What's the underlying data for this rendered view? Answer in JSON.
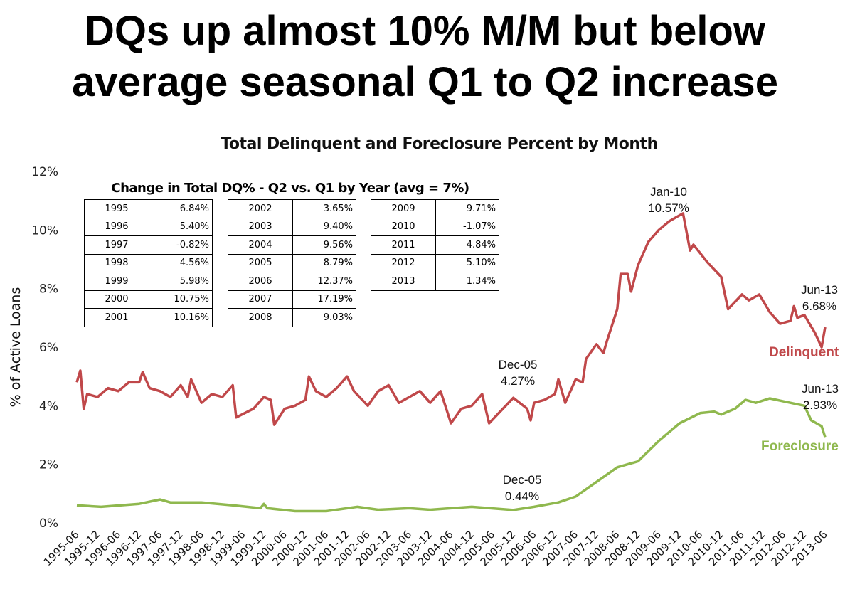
{
  "headline": {
    "line1": "DQs up almost 10% M/M but below",
    "line2": "average seasonal Q1 to Q2 increase"
  },
  "chart_data": {
    "type": "line",
    "title": "Total Delinquent and Foreclosure Percent by Month",
    "ylabel": "% of Active Loans",
    "xlabel": "",
    "ylim": [
      0,
      12
    ],
    "yticks": [
      "0%",
      "2%",
      "4%",
      "6%",
      "8%",
      "10%",
      "12%"
    ],
    "xticks": [
      "1995-06",
      "1995-12",
      "1996-06",
      "1996-12",
      "1997-06",
      "1997-12",
      "1998-06",
      "1998-12",
      "1999-06",
      "1999-12",
      "2000-06",
      "2000-12",
      "2001-06",
      "2001-12",
      "2002-06",
      "2002-12",
      "2003-06",
      "2003-12",
      "2004-06",
      "2004-12",
      "2005-06",
      "2005-12",
      "2006-06",
      "2006-12",
      "2007-06",
      "2007-12",
      "2008-06",
      "2008-12",
      "2009-06",
      "2009-12",
      "2010-06",
      "2010-12",
      "2011-06",
      "2011-12",
      "2012-06",
      "2012-12",
      "2013-06"
    ],
    "grid": false,
    "legend": "inline labels at right",
    "series": [
      {
        "name": "Delinquent",
        "color": "#c0484a",
        "points": [
          [
            "1995-06",
            4.8
          ],
          [
            "1995-07",
            5.2
          ],
          [
            "1995-08",
            3.9
          ],
          [
            "1995-09",
            4.4
          ],
          [
            "1995-12",
            4.3
          ],
          [
            "1996-03",
            4.6
          ],
          [
            "1996-06",
            4.5
          ],
          [
            "1996-09",
            4.8
          ],
          [
            "1996-12",
            4.8
          ],
          [
            "1997-01",
            5.15
          ],
          [
            "1997-03",
            4.6
          ],
          [
            "1997-06",
            4.5
          ],
          [
            "1997-09",
            4.3
          ],
          [
            "1997-12",
            4.7
          ],
          [
            "1998-02",
            4.3
          ],
          [
            "1998-03",
            4.9
          ],
          [
            "1998-06",
            4.1
          ],
          [
            "1998-09",
            4.4
          ],
          [
            "1998-12",
            4.3
          ],
          [
            "1999-03",
            4.7
          ],
          [
            "1999-04",
            3.6
          ],
          [
            "1999-09",
            3.9
          ],
          [
            "1999-12",
            4.3
          ],
          [
            "2000-02",
            4.2
          ],
          [
            "2000-03",
            3.35
          ],
          [
            "2000-06",
            3.9
          ],
          [
            "2000-09",
            4.0
          ],
          [
            "2000-12",
            4.2
          ],
          [
            "2001-01",
            5.0
          ],
          [
            "2001-03",
            4.5
          ],
          [
            "2001-06",
            4.3
          ],
          [
            "2001-09",
            4.6
          ],
          [
            "2001-12",
            5.0
          ],
          [
            "2002-02",
            4.5
          ],
          [
            "2002-06",
            4.0
          ],
          [
            "2002-09",
            4.5
          ],
          [
            "2002-12",
            4.7
          ],
          [
            "2003-03",
            4.1
          ],
          [
            "2003-06",
            4.3
          ],
          [
            "2003-09",
            4.5
          ],
          [
            "2003-12",
            4.1
          ],
          [
            "2004-03",
            4.5
          ],
          [
            "2004-06",
            3.4
          ],
          [
            "2004-09",
            3.9
          ],
          [
            "2004-12",
            4.0
          ],
          [
            "2005-03",
            4.4
          ],
          [
            "2005-05",
            3.4
          ],
          [
            "2005-09",
            3.9
          ],
          [
            "2005-12",
            4.27
          ],
          [
            "2006-04",
            3.9
          ],
          [
            "2006-05",
            3.5
          ],
          [
            "2006-06",
            4.1
          ],
          [
            "2006-09",
            4.2
          ],
          [
            "2006-12",
            4.4
          ],
          [
            "2007-01",
            4.9
          ],
          [
            "2007-03",
            4.1
          ],
          [
            "2007-06",
            4.9
          ],
          [
            "2007-08",
            4.8
          ],
          [
            "2007-09",
            5.6
          ],
          [
            "2007-12",
            6.1
          ],
          [
            "2008-02",
            5.8
          ],
          [
            "2008-03",
            6.2
          ],
          [
            "2008-06",
            7.3
          ],
          [
            "2008-07",
            8.5
          ],
          [
            "2008-09",
            8.5
          ],
          [
            "2008-10",
            7.9
          ],
          [
            "2008-12",
            8.8
          ],
          [
            "2009-03",
            9.6
          ],
          [
            "2009-06",
            10.0
          ],
          [
            "2009-09",
            10.3
          ],
          [
            "2010-01",
            10.57
          ],
          [
            "2010-03",
            9.3
          ],
          [
            "2010-04",
            9.5
          ],
          [
            "2010-08",
            8.9
          ],
          [
            "2010-12",
            8.4
          ],
          [
            "2011-02",
            7.3
          ],
          [
            "2011-06",
            7.8
          ],
          [
            "2011-08",
            7.6
          ],
          [
            "2011-11",
            7.8
          ],
          [
            "2012-02",
            7.2
          ],
          [
            "2012-05",
            6.8
          ],
          [
            "2012-08",
            6.9
          ],
          [
            "2012-09",
            7.4
          ],
          [
            "2012-10",
            7.0
          ],
          [
            "2012-12",
            7.1
          ],
          [
            "2013-03",
            6.5
          ],
          [
            "2013-05",
            6.0
          ],
          [
            "2013-06",
            6.68
          ]
        ]
      },
      {
        "name": "Foreclosure",
        "color": "#8fb84e",
        "points": [
          [
            "1995-06",
            0.6
          ],
          [
            "1996-01",
            0.55
          ],
          [
            "1996-12",
            0.65
          ],
          [
            "1997-06",
            0.8
          ],
          [
            "1997-09",
            0.7
          ],
          [
            "1998-06",
            0.7
          ],
          [
            "1999-03",
            0.6
          ],
          [
            "1999-11",
            0.5
          ],
          [
            "1999-12",
            0.65
          ],
          [
            "2000-01",
            0.5
          ],
          [
            "2000-09",
            0.4
          ],
          [
            "2001-06",
            0.4
          ],
          [
            "2002-03",
            0.55
          ],
          [
            "2002-09",
            0.45
          ],
          [
            "2003-06",
            0.5
          ],
          [
            "2003-12",
            0.45
          ],
          [
            "2004-06",
            0.5
          ],
          [
            "2004-12",
            0.55
          ],
          [
            "2005-12",
            0.44
          ],
          [
            "2006-06",
            0.55
          ],
          [
            "2007-01",
            0.7
          ],
          [
            "2007-06",
            0.9
          ],
          [
            "2007-12",
            1.4
          ],
          [
            "2008-06",
            1.9
          ],
          [
            "2008-12",
            2.1
          ],
          [
            "2009-06",
            2.8
          ],
          [
            "2009-12",
            3.4
          ],
          [
            "2010-06",
            3.75
          ],
          [
            "2010-10",
            3.8
          ],
          [
            "2010-12",
            3.7
          ],
          [
            "2011-04",
            3.9
          ],
          [
            "2011-07",
            4.2
          ],
          [
            "2011-10",
            4.1
          ],
          [
            "2012-02",
            4.25
          ],
          [
            "2012-06",
            4.15
          ],
          [
            "2012-12",
            4.0
          ],
          [
            "2013-02",
            3.5
          ],
          [
            "2013-05",
            3.3
          ],
          [
            "2013-06",
            2.93
          ]
        ]
      }
    ],
    "annotations": [
      {
        "date": "Jan-10",
        "value": "10.57%"
      },
      {
        "date": "Jun-13",
        "value": "6.68%"
      },
      {
        "date": "Dec-05",
        "value": "4.27%"
      },
      {
        "date": "Dec-05",
        "value": "0.44%"
      },
      {
        "date": "Jun-13",
        "value": "2.93%"
      }
    ]
  },
  "table": {
    "title": "Change in Total DQ% - Q2 vs. Q1 by Year (avg = 7%)",
    "groups": [
      [
        [
          "1995",
          "6.84%"
        ],
        [
          "1996",
          "5.40%"
        ],
        [
          "1997",
          "-0.82%"
        ],
        [
          "1998",
          "4.56%"
        ],
        [
          "1999",
          "5.98%"
        ],
        [
          "2000",
          "10.75%"
        ],
        [
          "2001",
          "10.16%"
        ]
      ],
      [
        [
          "2002",
          "3.65%"
        ],
        [
          "2003",
          "9.40%"
        ],
        [
          "2004",
          "9.56%"
        ],
        [
          "2005",
          "8.79%"
        ],
        [
          "2006",
          "12.37%"
        ],
        [
          "2007",
          "17.19%"
        ],
        [
          "2008",
          "9.03%"
        ]
      ],
      [
        [
          "2009",
          "9.71%"
        ],
        [
          "2010",
          "-1.07%"
        ],
        [
          "2011",
          "4.84%"
        ],
        [
          "2012",
          "5.10%"
        ],
        [
          "2013",
          "1.34%"
        ]
      ]
    ]
  }
}
